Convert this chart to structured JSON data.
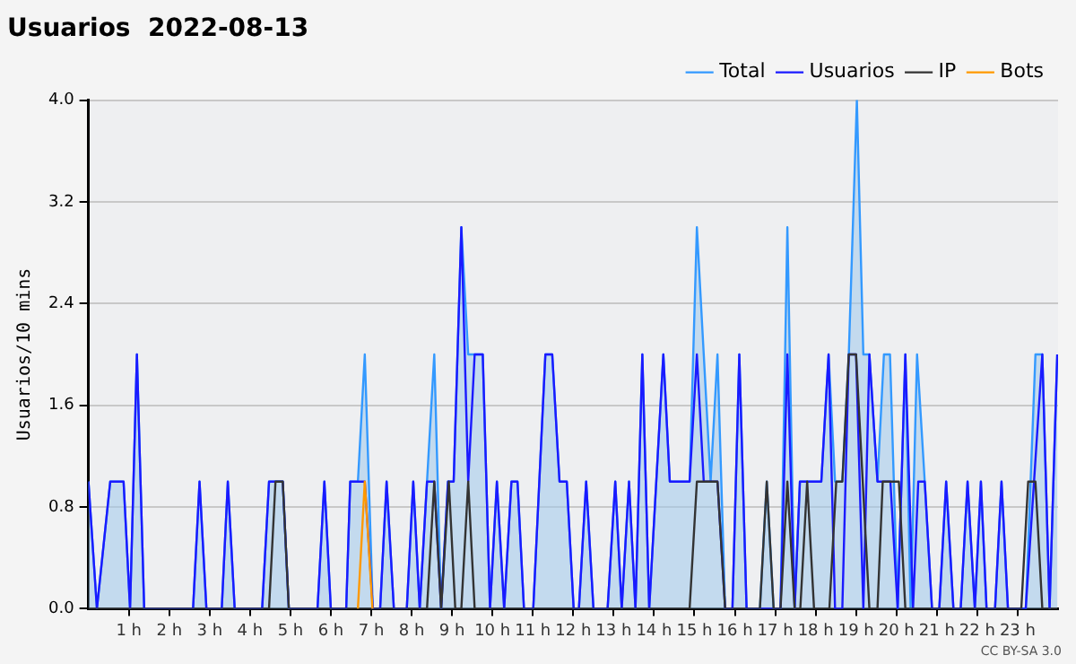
{
  "chart_data": {
    "type": "line",
    "title": "Usuarios  2022-08-13",
    "ylabel": "Usuarios/10 mins",
    "annotations": [
      "CC BY-SA 3.0"
    ],
    "xlim": [
      0,
      24
    ],
    "xticks": [
      {
        "value": 1,
        "label": "1 h"
      },
      {
        "value": 2,
        "label": "2 h"
      },
      {
        "value": 3,
        "label": "3 h"
      },
      {
        "value": 4,
        "label": "4 h"
      },
      {
        "value": 5,
        "label": "5 h"
      },
      {
        "value": 6,
        "label": "6 h"
      },
      {
        "value": 7,
        "label": "7 h"
      },
      {
        "value": 8,
        "label": "8 h"
      },
      {
        "value": 9,
        "label": "9 h"
      },
      {
        "value": 10,
        "label": "10 h"
      },
      {
        "value": 11,
        "label": "11 h"
      },
      {
        "value": 12,
        "label": "12 h"
      },
      {
        "value": 13,
        "label": "13 h"
      },
      {
        "value": 14,
        "label": "14 h"
      },
      {
        "value": 15,
        "label": "15 h"
      },
      {
        "value": 16,
        "label": "16 h"
      },
      {
        "value": 17,
        "label": "17 h"
      },
      {
        "value": 18,
        "label": "18 h"
      },
      {
        "value": 19,
        "label": "19 h"
      },
      {
        "value": 20,
        "label": "20 h"
      },
      {
        "value": 21,
        "label": "21 h"
      },
      {
        "value": 22,
        "label": "22 h"
      },
      {
        "value": 23,
        "label": "23 h"
      }
    ],
    "ylim": [
      0,
      4
    ],
    "yticks": [
      {
        "value": 0,
        "label": "0.0"
      },
      0.8,
      1.6,
      2.4,
      3.2,
      {
        "value": 4,
        "label": "4.0"
      }
    ],
    "grid": "y",
    "legend": "top right",
    "marker": "none",
    "line_style": "solid",
    "series": [
      {
        "name": "Total",
        "type": "area",
        "color": "#3399ff",
        "x": [
          0,
          0.21,
          0.54,
          0.87,
          1.03,
          1.2,
          1.38,
          2.59,
          2.75,
          2.92,
          3.3,
          3.45,
          3.62,
          4.3,
          4.47,
          4.81,
          4.96,
          5.67,
          5.84,
          6.0,
          6.38,
          6.48,
          6.67,
          6.84,
          7.04,
          7.22,
          7.38,
          7.56,
          7.88,
          8.04,
          8.2,
          8.38,
          8.56,
          8.73,
          8.9,
          9.04,
          9.23,
          9.4,
          9.56,
          9.76,
          9.94,
          10.11,
          10.29,
          10.47,
          10.62,
          10.78,
          11.01,
          11.31,
          11.48,
          11.66,
          11.84,
          12.01,
          12.14,
          12.32,
          12.5,
          12.85,
          13.04,
          13.2,
          13.38,
          13.54,
          13.71,
          13.88,
          14.23,
          14.39,
          14.88,
          15.06,
          15.23,
          15.4,
          15.57,
          15.76,
          15.94,
          16.11,
          16.29,
          16.62,
          16.79,
          16.96,
          17.13,
          17.3,
          17.48,
          17.61,
          18.14,
          18.32,
          18.48,
          18.66,
          18.82,
          19.02,
          19.18,
          19.33,
          19.53,
          19.69,
          19.84,
          20.03,
          20.22,
          20.35,
          20.51,
          20.7,
          20.88,
          21.06,
          21.23,
          21.41,
          21.59,
          21.76,
          21.94,
          22.09,
          22.23,
          22.44,
          22.6,
          22.76,
          23.2,
          23.44,
          23.61,
          23.79,
          23.98
        ],
        "values": [
          1,
          0,
          1,
          1,
          0,
          2,
          0,
          0,
          1,
          0,
          0,
          1,
          0,
          0,
          1,
          1,
          0,
          0,
          1,
          0,
          0,
          1,
          1,
          2,
          0,
          0,
          1,
          0,
          0,
          1,
          0,
          1,
          2,
          0,
          1,
          1,
          3,
          2,
          2,
          2,
          0,
          1,
          0,
          1,
          1,
          0,
          0,
          2,
          2,
          1,
          1,
          0,
          0,
          1,
          0,
          0,
          1,
          0,
          1,
          0,
          2,
          0,
          2,
          1,
          1,
          3,
          2,
          1,
          2,
          0,
          0,
          2,
          0,
          0,
          1,
          0,
          0,
          3,
          0,
          1,
          1,
          2,
          1,
          1,
          2,
          4,
          2,
          2,
          1,
          2,
          2,
          0,
          2,
          0,
          2,
          1,
          0,
          0,
          1,
          0,
          0,
          1,
          0,
          1,
          0,
          0,
          1,
          0,
          0,
          2,
          2,
          0,
          2
        ]
      },
      {
        "name": "Usuarios",
        "color": "#1a1aff",
        "x": [
          0,
          0.21,
          0.54,
          0.87,
          1.03,
          1.2,
          1.38,
          2.59,
          2.75,
          2.92,
          3.3,
          3.45,
          3.62,
          4.3,
          4.47,
          4.81,
          4.96,
          5.67,
          5.84,
          6.0,
          6.38,
          6.48,
          6.84,
          7.04,
          7.22,
          7.38,
          7.56,
          7.88,
          8.04,
          8.2,
          8.38,
          8.56,
          8.73,
          8.9,
          9.04,
          9.23,
          9.4,
          9.56,
          9.76,
          9.94,
          10.11,
          10.29,
          10.47,
          10.62,
          10.78,
          11.01,
          11.31,
          11.48,
          11.66,
          11.84,
          12.01,
          12.14,
          12.32,
          12.5,
          12.85,
          13.04,
          13.2,
          13.38,
          13.54,
          13.71,
          13.88,
          14.23,
          14.39,
          14.88,
          15.06,
          15.23,
          15.57,
          15.76,
          15.94,
          16.11,
          16.29,
          17.13,
          17.3,
          17.48,
          17.61,
          18.14,
          18.32,
          18.48,
          18.66,
          18.82,
          19.0,
          19.18,
          19.33,
          19.53,
          19.85,
          20.03,
          20.22,
          20.41,
          20.54,
          20.7,
          20.88,
          21.06,
          21.23,
          21.41,
          21.59,
          21.76,
          21.94,
          22.09,
          22.23,
          22.44,
          22.6,
          22.76,
          23.2,
          23.61,
          23.79,
          23.98
        ],
        "values": [
          1,
          0,
          1,
          1,
          0,
          2,
          0,
          0,
          1,
          0,
          0,
          1,
          0,
          0,
          1,
          1,
          0,
          0,
          1,
          0,
          0,
          1,
          1,
          0,
          0,
          1,
          0,
          0,
          1,
          0,
          1,
          1,
          0,
          1,
          1,
          3,
          1,
          2,
          2,
          0,
          1,
          0,
          1,
          1,
          0,
          0,
          2,
          2,
          1,
          1,
          0,
          0,
          1,
          0,
          0,
          1,
          0,
          1,
          0,
          2,
          0,
          2,
          1,
          1,
          2,
          1,
          1,
          0,
          0,
          2,
          0,
          0,
          2,
          0,
          1,
          1,
          2,
          0,
          0,
          2,
          2,
          0,
          2,
          1,
          1,
          0,
          2,
          0,
          1,
          1,
          0,
          0,
          1,
          0,
          0,
          1,
          0,
          1,
          0,
          0,
          1,
          0,
          0,
          2,
          0,
          2
        ]
      },
      {
        "name": "IP",
        "color": "#333333",
        "x": [
          0,
          4.47,
          4.63,
          4.81,
          4.96,
          8.38,
          8.56,
          8.73,
          8.92,
          9.08,
          9.23,
          9.4,
          9.56,
          14.88,
          15.06,
          15.57,
          15.76,
          16.62,
          16.79,
          16.96,
          17.13,
          17.3,
          17.48,
          17.62,
          17.79,
          17.96,
          18.34,
          18.51,
          18.66,
          18.82,
          19.0,
          19.33,
          19.53,
          19.66,
          20.06,
          20.22,
          23.09,
          23.26,
          23.44,
          23.61,
          23.98
        ],
        "values": [
          0,
          0,
          1,
          1,
          0,
          0,
          1,
          0,
          1,
          0,
          0,
          1,
          0,
          0,
          1,
          1,
          0,
          0,
          1,
          0,
          0,
          1,
          0,
          0,
          1,
          0,
          0,
          1,
          1,
          2,
          2,
          0,
          0,
          1,
          1,
          0,
          0,
          1,
          1,
          0,
          0
        ]
      },
      {
        "name": "Bots",
        "color": "#ff9900",
        "x": [
          6.67,
          6.84,
          7.03
        ],
        "values": [
          0,
          1,
          0
        ]
      }
    ]
  }
}
